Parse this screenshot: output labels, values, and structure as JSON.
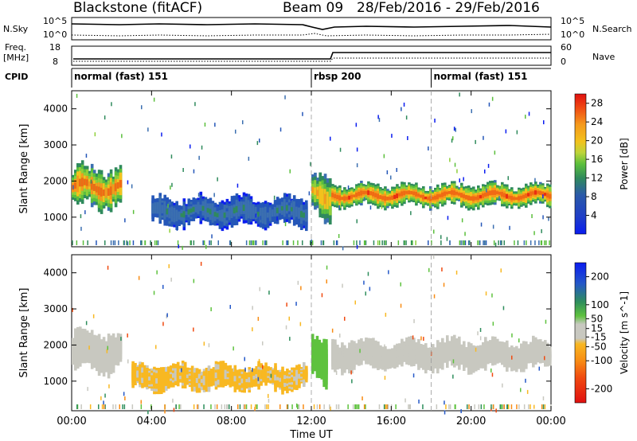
{
  "header": {
    "station": "Blackstone (fitACF)",
    "beam": "Beam 09",
    "date_range": "28/Feb/2016 - 29/Feb/2016"
  },
  "side_labels": {
    "nsky": "N.Sky",
    "nsearch": "N.Search",
    "freq": "Freq.",
    "freq_unit": "[MHz]",
    "nave": "Nave",
    "cpid": "CPID"
  },
  "noise_panel": {
    "left_ticks": [
      "10^5",
      "10^0"
    ],
    "right_ticks": [
      "10^5",
      "10^0"
    ]
  },
  "freq_panel": {
    "left_ticks": [
      "18",
      "8"
    ],
    "right_ticks": [
      "60",
      "0"
    ]
  },
  "cpid_segments": [
    {
      "label": "normal (fast) 151",
      "start_hour": 0
    },
    {
      "label": "rbsp 200",
      "start_hour": 12
    },
    {
      "label": "normal (fast) 151",
      "start_hour": 18
    }
  ],
  "colors": {
    "power": [
      "#0a1cf0",
      "#2456b8",
      "#3b6fb0",
      "#2f8a5c",
      "#5bbf3c",
      "#8fcf3a",
      "#f2c21c",
      "#f59a1c",
      "#f06a14",
      "#ea2e10",
      "#e01010"
    ],
    "velocity": [
      "#e01010",
      "#f04a10",
      "#f88c14",
      "#f8b822",
      "#c8c8c0",
      "#c8c8c0",
      "#5ec23e",
      "#2e8e5c",
      "#2458c8",
      "#0a1cf0"
    ]
  },
  "chart_data": [
    {
      "type": "heatmap",
      "name": "power",
      "xlabel": "Time UT",
      "ylabel": "Slant Range [km]",
      "xlim": [
        0,
        24
      ],
      "ylim": [
        180,
        4500
      ],
      "x_tick_labels": [
        "00:00",
        "04:00",
        "08:00",
        "12:00",
        "16:00",
        "20:00",
        "00:00"
      ],
      "x_tick_hours": [
        0,
        4,
        8,
        12,
        16,
        20,
        24
      ],
      "y_ticks": [
        1000,
        2000,
        3000,
        4000
      ],
      "colorbar": {
        "label": "Power [dB]",
        "ticks": [
          4,
          8,
          12,
          16,
          20,
          24,
          28
        ],
        "range": [
          0,
          30
        ]
      },
      "features": [
        {
          "h0": 0.0,
          "h1": 2.5,
          "r0": 1200,
          "r1": 2450,
          "value": 26
        },
        {
          "h0": 4.0,
          "h1": 11.8,
          "r0": 700,
          "r1": 1600,
          "value": 9
        },
        {
          "h0": 12.0,
          "h1": 13.0,
          "r0": 900,
          "r1": 2300,
          "value": 22
        },
        {
          "h0": 13.0,
          "h1": 24.0,
          "r0": 1250,
          "r1": 1950,
          "value": 27
        }
      ]
    },
    {
      "type": "heatmap",
      "name": "velocity",
      "xlabel": "Time UT",
      "ylabel": "Slant Range [km]",
      "xlim": [
        0,
        24
      ],
      "ylim": [
        180,
        4500
      ],
      "x_tick_labels": [
        "00:00",
        "04:00",
        "08:00",
        "12:00",
        "16:00",
        "20:00",
        "00:00"
      ],
      "x_tick_hours": [
        0,
        4,
        8,
        12,
        16,
        20,
        24
      ],
      "y_ticks": [
        1000,
        2000,
        3000,
        4000
      ],
      "colorbar": {
        "label": "Velocity [m s^-1]",
        "ticks": [
          200,
          100,
          50,
          15,
          -15,
          -50,
          -100,
          -200
        ],
        "range": [
          -250,
          250
        ]
      },
      "features": [
        {
          "h0": 0.0,
          "h1": 2.5,
          "r0": 1200,
          "r1": 2450,
          "value": 0
        },
        {
          "h0": 3.0,
          "h1": 11.8,
          "r0": 700,
          "r1": 1500,
          "value": -60
        },
        {
          "h0": 12.0,
          "h1": 12.8,
          "r0": 900,
          "r1": 2300,
          "value": 80
        },
        {
          "h0": 13.0,
          "h1": 24.0,
          "r0": 1250,
          "r1": 2200,
          "value": 0
        }
      ]
    }
  ]
}
